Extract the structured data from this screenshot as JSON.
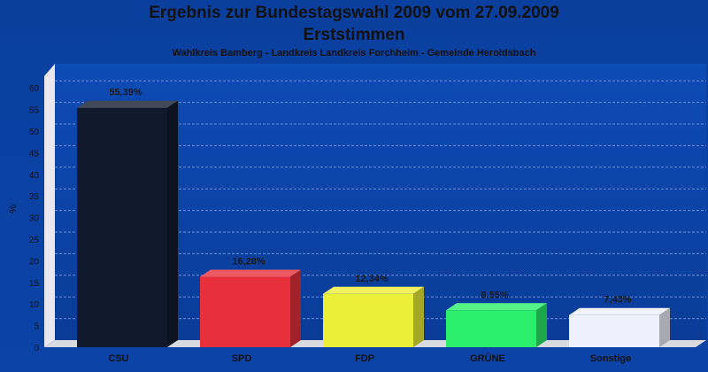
{
  "header": {
    "title_line1": "Ergebnis zur Bundestagswahl 2009 vom 27.09.2009",
    "title_line2": "Erststimmen",
    "subtitle": "Wahlkreis Bamberg - Landkreis Landkreis Forchheim - Gemeinde Heroldsbach"
  },
  "chart_data": {
    "type": "bar",
    "title": "Ergebnis zur Bundestagswahl 2009 vom 27.09.2009",
    "subtitle": "Erststimmen",
    "xlabel": "",
    "ylabel": "%",
    "ylim": [
      0,
      62
    ],
    "yticks": [
      0,
      5,
      10,
      15,
      20,
      25,
      30,
      35,
      40,
      45,
      50,
      55,
      60
    ],
    "grid": true,
    "categories": [
      "CSU",
      "SPD",
      "FDP",
      "GRÜNE",
      "Sonstige"
    ],
    "values": [
      55.39,
      16.28,
      12.34,
      8.55,
      7.43
    ],
    "data_labels": [
      "55,39%",
      "16,28%",
      "12,34%",
      "8,55%",
      "7,43%"
    ],
    "colors": [
      "#111a2c",
      "#e8303c",
      "#ecef38",
      "#2bef6a",
      "#eef0fb"
    ],
    "background": "#0b43a6"
  }
}
